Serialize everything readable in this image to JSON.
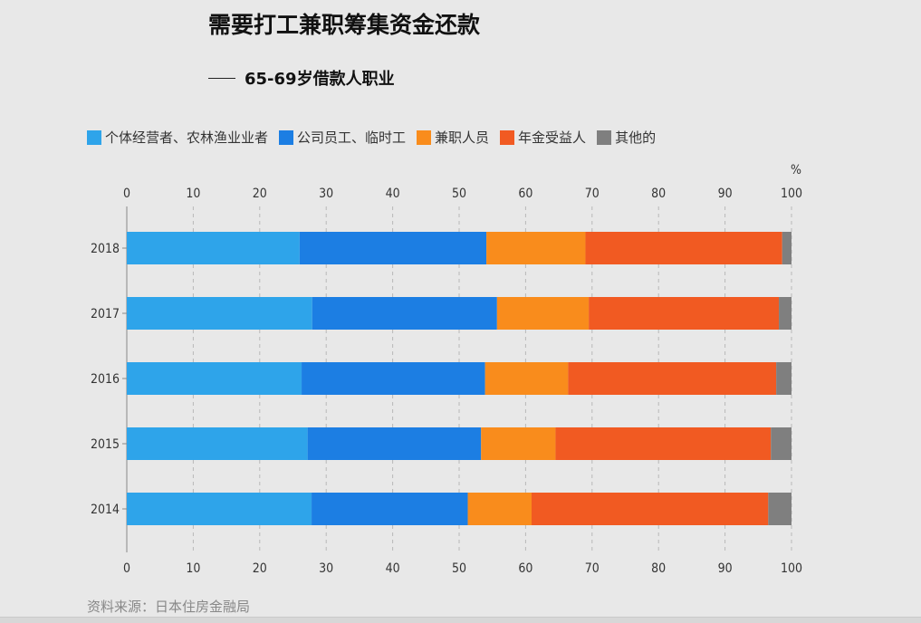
{
  "title": "需要打工兼职筹集资金还款",
  "subtitle": "65-69岁借款人职业",
  "source": "资料来源：日本住房金融局",
  "colors": {
    "self_employed": "#2ea4ea",
    "company_employee": "#1c7ee3",
    "part_time": "#f98c1c",
    "pensioner": "#f15a22",
    "other": "#7f7f7f"
  },
  "chart_data": {
    "type": "bar",
    "orientation": "horizontal",
    "stacked": true,
    "title": "需要打工兼职筹集资金还款",
    "subtitle": "65-69岁借款人职业",
    "unit_label": "%",
    "xlabel": "",
    "ylabel": "",
    "xlim": [
      0,
      100
    ],
    "xticks": [
      0,
      10,
      20,
      30,
      40,
      50,
      60,
      70,
      80,
      90,
      100
    ],
    "categories": [
      "2018",
      "2017",
      "2016",
      "2015",
      "2014"
    ],
    "series": [
      {
        "name": "个体经营者、农林渔业业者",
        "color_key": "self_employed",
        "values": [
          26.0,
          27.9,
          26.3,
          27.2,
          27.8
        ]
      },
      {
        "name": "公司员工、临时工",
        "color_key": "company_employee",
        "values": [
          28.1,
          27.8,
          27.6,
          26.1,
          23.5
        ]
      },
      {
        "name": "兼职人员",
        "color_key": "part_time",
        "values": [
          14.9,
          13.8,
          12.5,
          11.2,
          9.6
        ]
      },
      {
        "name": "年金受益人",
        "color_key": "pensioner",
        "values": [
          29.6,
          28.6,
          31.3,
          32.4,
          35.6
        ]
      },
      {
        "name": "其他的",
        "color_key": "other",
        "values": [
          1.4,
          1.9,
          2.3,
          3.1,
          3.5
        ]
      }
    ],
    "legend_position": "top-left",
    "grid": true,
    "source": "资料来源：日本住房金融局"
  }
}
